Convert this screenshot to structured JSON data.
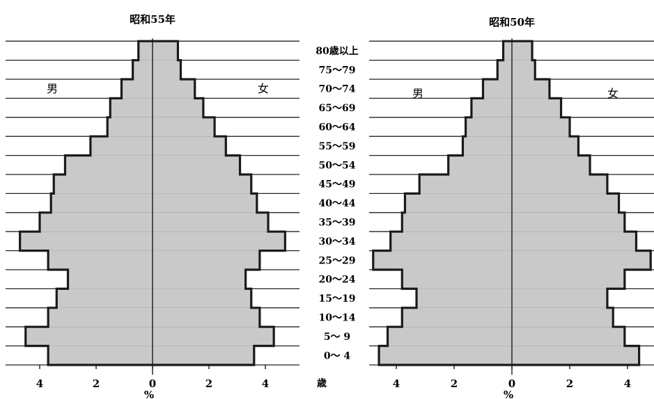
{
  "age_groups": [
    "0〜 4",
    "5〜 9",
    "10〜14",
    "15〜19",
    "20〜24",
    "25〜29",
    "30〜34",
    "35〜39",
    "40〜44",
    "45〜49",
    "50〜54",
    "55〜59",
    "60〜64",
    "65〜69",
    "70〜74",
    "75〜79",
    "80歳以上"
  ],
  "age_axis_unit": "歳",
  "colors": {
    "bar_fill": "#c9c9c9",
    "outline": "#1a1a1a",
    "grid": "#222222",
    "background": "#ffffff"
  },
  "chart_data": [
    {
      "type": "bar",
      "title": "昭和55年",
      "male_label": "男",
      "female_label": "女",
      "xlabel": "%",
      "xlim": [
        -5,
        5
      ],
      "tick_labels": [
        "4",
        "2",
        "0",
        "2",
        "4"
      ],
      "tick_values": [
        -4,
        -2,
        0,
        2,
        4
      ],
      "categories": [
        "0〜 4",
        "5〜 9",
        "10〜14",
        "15〜19",
        "20〜24",
        "25〜29",
        "30〜34",
        "35〜39",
        "40〜44",
        "45〜49",
        "50〜54",
        "55〜59",
        "60〜64",
        "65〜69",
        "70〜74",
        "75〜79",
        "80歳以上"
      ],
      "series": [
        {
          "name": "男",
          "values": [
            3.7,
            4.5,
            3.7,
            3.4,
            3.0,
            3.7,
            4.7,
            4.0,
            3.6,
            3.5,
            3.1,
            2.2,
            1.6,
            1.5,
            1.1,
            0.7,
            0.5
          ]
        },
        {
          "name": "女",
          "values": [
            3.6,
            4.3,
            3.8,
            3.5,
            3.3,
            3.8,
            4.7,
            4.1,
            3.7,
            3.5,
            3.1,
            2.6,
            2.2,
            1.8,
            1.5,
            1.0,
            0.9
          ]
        }
      ]
    },
    {
      "type": "bar",
      "title": "昭和50年",
      "male_label": "男",
      "female_label": "女",
      "xlabel": "%",
      "xlim": [
        -5,
        5
      ],
      "tick_labels": [
        "4",
        "2",
        "0",
        "2",
        "4"
      ],
      "tick_values": [
        -4,
        -2,
        0,
        2,
        4
      ],
      "categories": [
        "0〜 4",
        "5〜 9",
        "10〜14",
        "15〜19",
        "20〜24",
        "25〜29",
        "30〜34",
        "35〜39",
        "40〜44",
        "45〜49",
        "50〜54",
        "55〜59",
        "60〜64",
        "65〜69",
        "70〜74",
        "75〜79",
        "80歳以上"
      ],
      "series": [
        {
          "name": "男",
          "values": [
            4.6,
            4.3,
            3.8,
            3.3,
            3.8,
            4.8,
            4.2,
            3.8,
            3.7,
            3.2,
            2.2,
            1.7,
            1.6,
            1.4,
            1.0,
            0.5,
            0.3
          ]
        },
        {
          "name": "女",
          "values": [
            4.4,
            3.9,
            3.5,
            3.3,
            3.9,
            4.8,
            4.3,
            3.9,
            3.7,
            3.3,
            2.7,
            2.3,
            2.0,
            1.7,
            1.3,
            0.8,
            0.7
          ]
        }
      ]
    }
  ]
}
